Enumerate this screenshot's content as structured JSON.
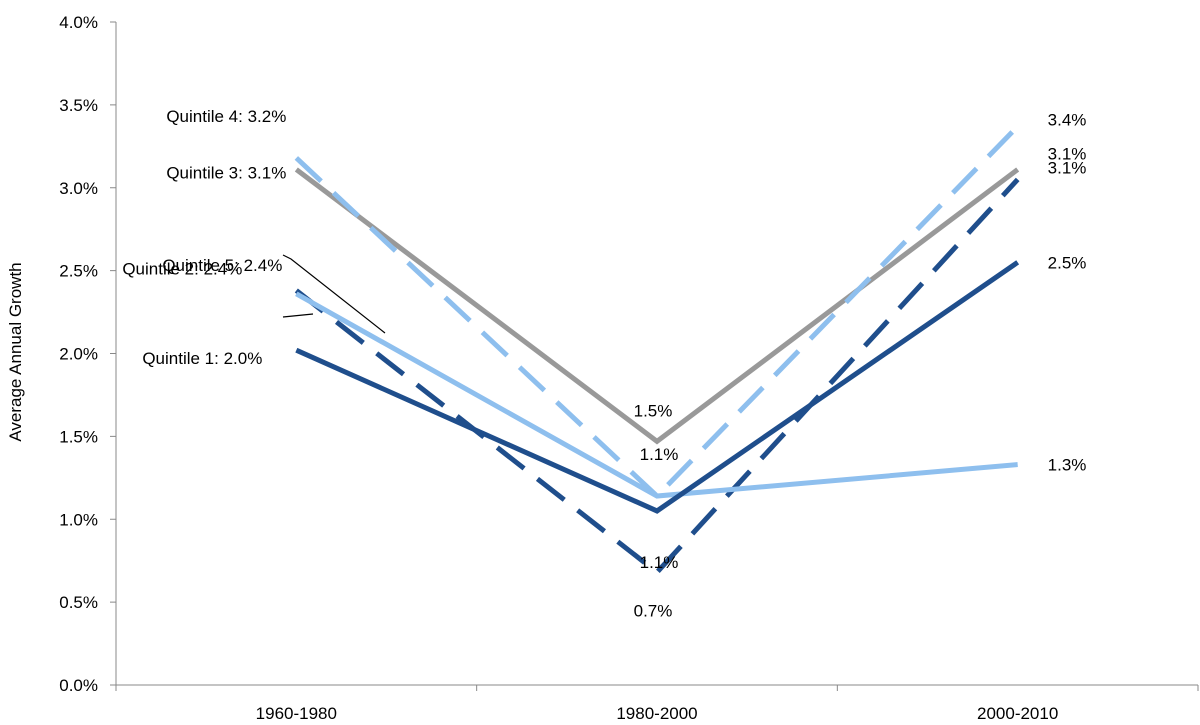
{
  "chart_data": {
    "type": "line",
    "title": "",
    "xlabel": "",
    "ylabel": "Average Annual Growth",
    "categories": [
      "1960-1980",
      "1980-2000",
      "2000-2010"
    ],
    "ylim": [
      0,
      4
    ],
    "yticks": [
      0,
      0.5,
      1,
      1.5,
      2,
      2.5,
      3,
      3.5,
      4
    ],
    "ytick_labels": [
      "0.0%",
      "0.5%",
      "1.0%",
      "1.5%",
      "2.0%",
      "2.5%",
      "3.0%",
      "3.5%",
      "4.0%"
    ],
    "grid": false,
    "legend": "none",
    "series": [
      {
        "name": "Quintile 1",
        "values": [
          2.02,
          1.05,
          2.55
        ],
        "color": "#1f4e8c",
        "dashed": false,
        "labels": [
          "Quintile 1: 2.0%",
          "",
          "2.5%"
        ]
      },
      {
        "name": "Quintile 2",
        "values": [
          2.38,
          0.68,
          3.05
        ],
        "color": "#1f4e8c",
        "dashed": true,
        "labels": [
          "Quintile 2: 2.4%",
          "0.7%",
          "3.1%"
        ]
      },
      {
        "name": "Quintile 3",
        "values": [
          3.11,
          1.47,
          3.11
        ],
        "color": "#999999",
        "dashed": false,
        "labels": [
          "Quintile 3: 3.1%",
          "1.5%",
          "3.1%"
        ]
      },
      {
        "name": "Quintile 4",
        "values": [
          3.18,
          1.14,
          3.37
        ],
        "color": "#8ebfee",
        "dashed": true,
        "labels": [
          "Quintile 4: 3.2%",
          "1.1%",
          "3.4%"
        ]
      },
      {
        "name": "Quintile 5",
        "values": [
          2.36,
          1.14,
          1.33
        ],
        "color": "#8ebfee",
        "dashed": false,
        "labels": [
          "Quintile 5: 2.4%",
          "1.1%",
          "1.3%"
        ]
      }
    ]
  }
}
